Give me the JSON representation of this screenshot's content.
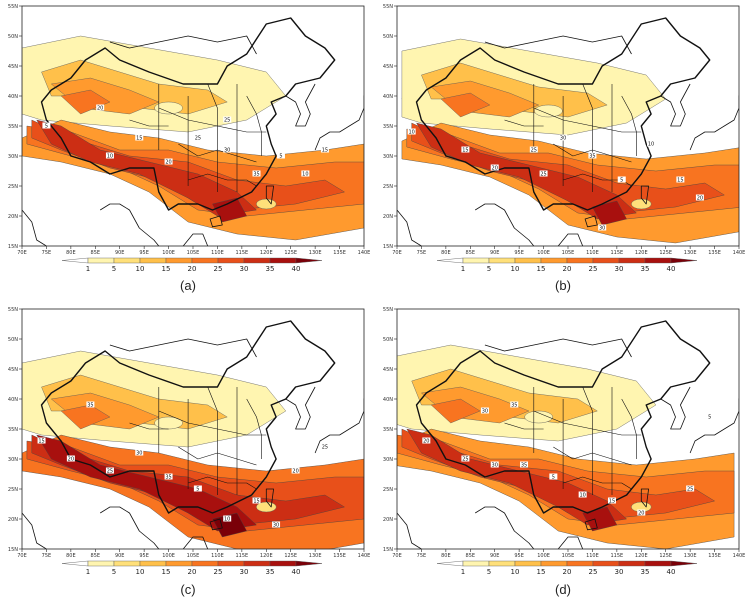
{
  "figure": {
    "panels": [
      {
        "id": "a",
        "caption": "(a)"
      },
      {
        "id": "b",
        "caption": "(b)"
      },
      {
        "id": "c",
        "caption": "(c)"
      },
      {
        "id": "d",
        "caption": "(d)"
      }
    ],
    "lat_ticks": [
      "15N",
      "20N",
      "25N",
      "30N",
      "35N",
      "40N",
      "45N",
      "50N",
      "55N"
    ],
    "lon_ticks": [
      "70E",
      "75E",
      "80E",
      "85E",
      "90E",
      "95E",
      "100E",
      "105E",
      "110E",
      "115E",
      "120E",
      "125E",
      "130E",
      "135E",
      "140E"
    ],
    "colorbar": {
      "labels": [
        "1",
        "5",
        "10",
        "15",
        "20",
        "25",
        "30",
        "35",
        "40"
      ],
      "colors": [
        "#ffffff",
        "#fff5b0",
        "#ffe07a",
        "#ffc04a",
        "#ff9a2e",
        "#f87420",
        "#e8501a",
        "#cc2e14",
        "#a8100e",
        "#7a0008"
      ]
    },
    "contour_labels": [
      "5",
      "10",
      "15",
      "20",
      "25",
      "30",
      "35"
    ]
  }
}
